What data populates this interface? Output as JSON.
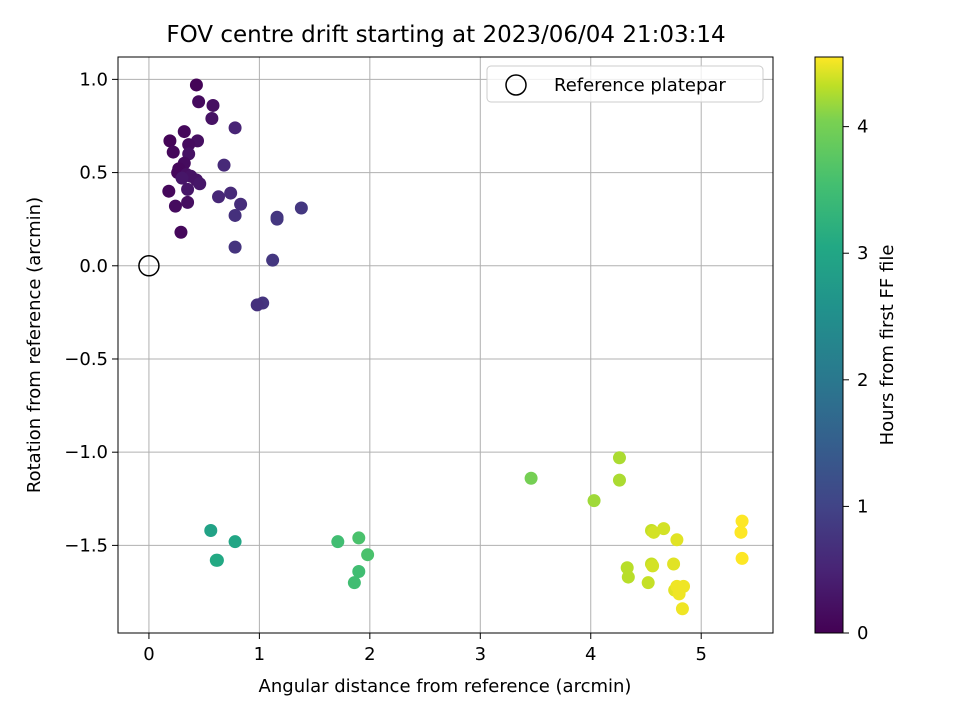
{
  "chart_data": {
    "type": "scatter",
    "title": "FOV centre drift starting at 2023/06/04 21:03:14",
    "xlabel": "Angular distance from reference (arcmin)",
    "ylabel": "Rotation from reference (arcmin)",
    "xlim": [
      -0.28,
      5.65
    ],
    "ylim": [
      -1.97,
      1.12
    ],
    "xticks": [
      0,
      1,
      2,
      3,
      4,
      5
    ],
    "xtick_labels": [
      "0",
      "1",
      "2",
      "3",
      "4",
      "5"
    ],
    "yticks": [
      -1.5,
      -1.0,
      -0.5,
      0.0,
      0.5,
      1.0
    ],
    "ytick_labels": [
      "−1.5",
      "−1.0",
      "−0.5",
      "0.0",
      "0.5",
      "1.0"
    ],
    "grid": true,
    "legend_position": "top-right",
    "legend": [
      {
        "label": "Reference platepar",
        "marker": "open-circle"
      }
    ],
    "reference_point": {
      "x": 0.0,
      "y": 0.0
    },
    "colorbar": {
      "label": "Hours from first FF file",
      "range": [
        0,
        4.55
      ],
      "ticks": [
        0,
        1,
        2,
        3,
        4
      ],
      "tick_labels": [
        "0",
        "1",
        "2",
        "3",
        "4"
      ],
      "colormap": "viridis"
    },
    "points": [
      {
        "x": 0.43,
        "y": 0.97,
        "c": 0.05
      },
      {
        "x": 0.45,
        "y": 0.88,
        "c": 0.15
      },
      {
        "x": 0.58,
        "y": 0.86,
        "c": 0.2
      },
      {
        "x": 0.57,
        "y": 0.79,
        "c": 0.25
      },
      {
        "x": 0.32,
        "y": 0.72,
        "c": 0.1
      },
      {
        "x": 0.19,
        "y": 0.67,
        "c": 0.05
      },
      {
        "x": 0.44,
        "y": 0.67,
        "c": 0.2
      },
      {
        "x": 0.36,
        "y": 0.65,
        "c": 0.15
      },
      {
        "x": 0.22,
        "y": 0.61,
        "c": 0.1
      },
      {
        "x": 0.36,
        "y": 0.6,
        "c": 0.25
      },
      {
        "x": 0.32,
        "y": 0.55,
        "c": 0.15
      },
      {
        "x": 0.27,
        "y": 0.52,
        "c": 0.1
      },
      {
        "x": 0.26,
        "y": 0.5,
        "c": 0.1
      },
      {
        "x": 0.34,
        "y": 0.49,
        "c": 0.2
      },
      {
        "x": 0.38,
        "y": 0.48,
        "c": 0.25
      },
      {
        "x": 0.3,
        "y": 0.47,
        "c": 0.3
      },
      {
        "x": 0.43,
        "y": 0.46,
        "c": 0.25
      },
      {
        "x": 0.46,
        "y": 0.44,
        "c": 0.3
      },
      {
        "x": 0.35,
        "y": 0.41,
        "c": 0.3
      },
      {
        "x": 0.18,
        "y": 0.4,
        "c": 0.1
      },
      {
        "x": 0.35,
        "y": 0.34,
        "c": 0.2
      },
      {
        "x": 0.24,
        "y": 0.32,
        "c": 0.15
      },
      {
        "x": 0.29,
        "y": 0.18,
        "c": 0.1
      },
      {
        "x": 0.78,
        "y": 0.74,
        "c": 0.5
      },
      {
        "x": 0.68,
        "y": 0.54,
        "c": 0.6
      },
      {
        "x": 0.74,
        "y": 0.39,
        "c": 0.6
      },
      {
        "x": 0.63,
        "y": 0.37,
        "c": 0.55
      },
      {
        "x": 0.83,
        "y": 0.33,
        "c": 0.65
      },
      {
        "x": 0.78,
        "y": 0.27,
        "c": 0.7
      },
      {
        "x": 1.38,
        "y": 0.31,
        "c": 0.8
      },
      {
        "x": 1.16,
        "y": 0.26,
        "c": 0.75
      },
      {
        "x": 1.16,
        "y": 0.25,
        "c": 0.8
      },
      {
        "x": 0.78,
        "y": 0.1,
        "c": 0.75
      },
      {
        "x": 1.12,
        "y": 0.03,
        "c": 0.8
      },
      {
        "x": 1.03,
        "y": -0.2,
        "c": 0.75
      },
      {
        "x": 0.98,
        "y": -0.21,
        "c": 0.7
      },
      {
        "x": 0.56,
        "y": -1.42,
        "c": 2.9
      },
      {
        "x": 0.62,
        "y": -1.58,
        "c": 3.0
      },
      {
        "x": 0.61,
        "y": -1.58,
        "c": 3.05
      },
      {
        "x": 0.78,
        "y": -1.48,
        "c": 3.0
      },
      {
        "x": 1.71,
        "y": -1.48,
        "c": 3.5
      },
      {
        "x": 1.9,
        "y": -1.46,
        "c": 3.6
      },
      {
        "x": 1.98,
        "y": -1.55,
        "c": 3.6
      },
      {
        "x": 1.9,
        "y": -1.64,
        "c": 3.5
      },
      {
        "x": 1.86,
        "y": -1.7,
        "c": 3.5
      },
      {
        "x": 3.46,
        "y": -1.14,
        "c": 4.0
      },
      {
        "x": 4.03,
        "y": -1.26,
        "c": 4.2
      },
      {
        "x": 4.26,
        "y": -1.03,
        "c": 4.25
      },
      {
        "x": 4.26,
        "y": -1.15,
        "c": 4.25
      },
      {
        "x": 4.33,
        "y": -1.62,
        "c": 4.3
      },
      {
        "x": 4.34,
        "y": -1.67,
        "c": 4.3
      },
      {
        "x": 4.52,
        "y": -1.7,
        "c": 4.35
      },
      {
        "x": 4.55,
        "y": -1.42,
        "c": 4.35
      },
      {
        "x": 4.57,
        "y": -1.43,
        "c": 4.4
      },
      {
        "x": 4.55,
        "y": -1.6,
        "c": 4.35
      },
      {
        "x": 4.56,
        "y": -1.61,
        "c": 4.4
      },
      {
        "x": 4.66,
        "y": -1.41,
        "c": 4.4
      },
      {
        "x": 4.75,
        "y": -1.6,
        "c": 4.45
      },
      {
        "x": 4.78,
        "y": -1.47,
        "c": 4.45
      },
      {
        "x": 4.76,
        "y": -1.74,
        "c": 4.45
      },
      {
        "x": 4.78,
        "y": -1.72,
        "c": 4.5
      },
      {
        "x": 4.8,
        "y": -1.76,
        "c": 4.5
      },
      {
        "x": 4.84,
        "y": -1.72,
        "c": 4.5
      },
      {
        "x": 4.83,
        "y": -1.84,
        "c": 4.5
      },
      {
        "x": 5.37,
        "y": -1.37,
        "c": 4.55
      },
      {
        "x": 5.36,
        "y": -1.43,
        "c": 4.55
      },
      {
        "x": 5.37,
        "y": -1.57,
        "c": 4.55
      }
    ]
  }
}
